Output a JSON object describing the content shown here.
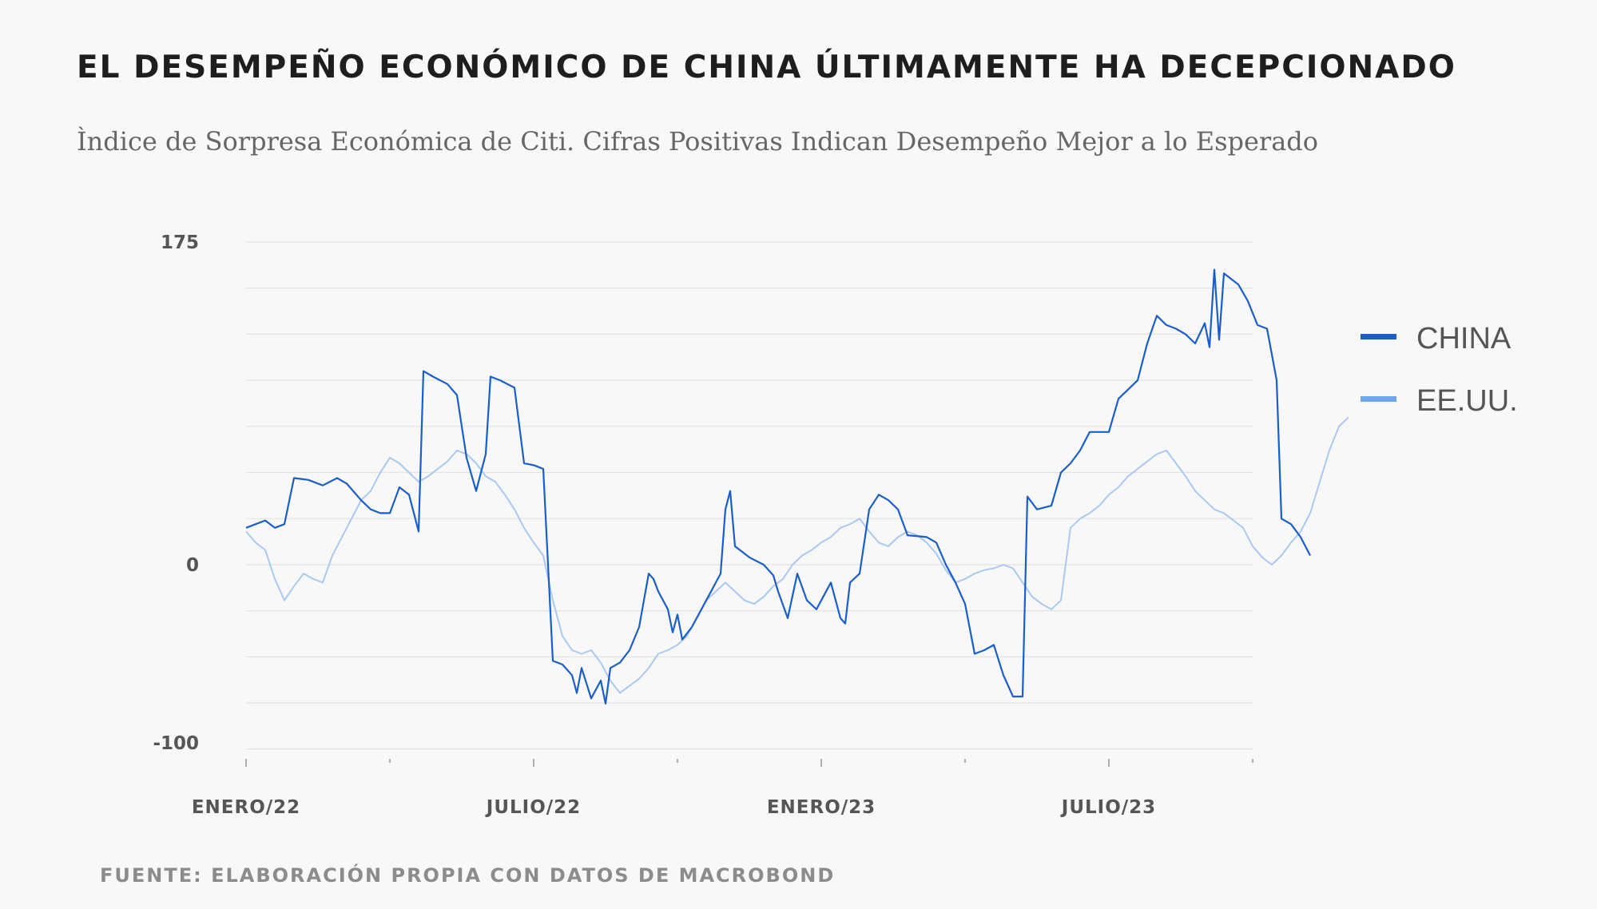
{
  "header": {
    "title": "EL DESEMPEÑO ECONÓMICO DE CHINA ÚLTIMAMENTE HA DECEPCIONADO",
    "subtitle": "Ìndice de Sorpresa Económica de Citi. Cifras Positivas Indican Desempeño Mejor a lo Esperado"
  },
  "footer": {
    "source": "FUENTE: ELABORACIÓN PROPIA CON DATOS DE MACROBOND"
  },
  "colors": {
    "china": "#1a5fc7",
    "usa": "#a9c9f2",
    "legend_usa": "#6ea6f0",
    "grid": "#e2e2e2"
  },
  "chart_data": {
    "type": "line",
    "title": "EL DESEMPEÑO ECONÓMICO DE CHINA ÚLTIMAMENTE HA DECEPCIONADO",
    "subtitle": "Ìndice de Sorpresa Económica de Citi. Cifras Positivas Indican Desempeño Mejor a lo Esperado",
    "xlabel": "",
    "ylabel": "",
    "x_range": [
      0,
      22.2
    ],
    "x_unit": "months since Jan 2022",
    "ylim": [
      -100,
      175
    ],
    "y_ticks": [
      175,
      0,
      -100
    ],
    "x_ticks": [
      {
        "label": "ENERO/22",
        "x": 0
      },
      {
        "label": "JULIO/22",
        "x": 6
      },
      {
        "label": "ENERO/23",
        "x": 12
      },
      {
        "label": "JULIO/23",
        "x": 18
      }
    ],
    "grid": true,
    "legend_position": "right",
    "series": [
      {
        "name": "CHINA",
        "points": [
          [
            0.0,
            20
          ],
          [
            0.2,
            22
          ],
          [
            0.4,
            24
          ],
          [
            0.6,
            20
          ],
          [
            0.8,
            22
          ],
          [
            1.0,
            47
          ],
          [
            1.3,
            46
          ],
          [
            1.6,
            43
          ],
          [
            1.9,
            47
          ],
          [
            2.1,
            44
          ],
          [
            2.4,
            35
          ],
          [
            2.6,
            30
          ],
          [
            2.8,
            28
          ],
          [
            3.0,
            28
          ],
          [
            3.2,
            42
          ],
          [
            3.4,
            38
          ],
          [
            3.6,
            18
          ],
          [
            3.7,
            105
          ],
          [
            3.9,
            102
          ],
          [
            4.2,
            98
          ],
          [
            4.4,
            92
          ],
          [
            4.6,
            58
          ],
          [
            4.8,
            40
          ],
          [
            5.0,
            60
          ],
          [
            5.1,
            102
          ],
          [
            5.3,
            100
          ],
          [
            5.6,
            96
          ],
          [
            5.8,
            55
          ],
          [
            6.0,
            54
          ],
          [
            6.2,
            52
          ],
          [
            6.4,
            -54
          ],
          [
            6.6,
            -56
          ],
          [
            6.8,
            -62
          ],
          [
            6.9,
            -72
          ],
          [
            7.0,
            -58
          ],
          [
            7.2,
            -75
          ],
          [
            7.4,
            -65
          ],
          [
            7.5,
            -78
          ],
          [
            7.6,
            -58
          ],
          [
            7.8,
            -55
          ],
          [
            8.0,
            -48
          ],
          [
            8.2,
            -35
          ],
          [
            8.4,
            -5
          ],
          [
            8.5,
            -8
          ],
          [
            8.6,
            -15
          ],
          [
            8.8,
            -25
          ],
          [
            8.9,
            -38
          ],
          [
            9.0,
            -28
          ],
          [
            9.1,
            -42
          ],
          [
            9.3,
            -35
          ],
          [
            9.5,
            -25
          ],
          [
            9.7,
            -15
          ],
          [
            9.9,
            -5
          ],
          [
            10.0,
            30
          ],
          [
            10.1,
            40
          ],
          [
            10.2,
            10
          ],
          [
            10.5,
            4
          ],
          [
            10.8,
            0
          ],
          [
            11.0,
            -6
          ],
          [
            11.1,
            -15
          ],
          [
            11.3,
            -30
          ],
          [
            11.5,
            -5
          ],
          [
            11.7,
            -20
          ],
          [
            11.9,
            -25
          ],
          [
            12.2,
            -10
          ],
          [
            12.4,
            -30
          ],
          [
            12.5,
            -33
          ],
          [
            12.6,
            -10
          ],
          [
            12.8,
            -5
          ],
          [
            13.0,
            30
          ],
          [
            13.2,
            38
          ],
          [
            13.4,
            35
          ],
          [
            13.6,
            30
          ],
          [
            13.8,
            16
          ],
          [
            14.2,
            15
          ],
          [
            14.4,
            12
          ],
          [
            14.6,
            0
          ],
          [
            14.8,
            -10
          ],
          [
            15.0,
            -22
          ],
          [
            15.2,
            -50
          ],
          [
            15.4,
            -48
          ],
          [
            15.6,
            -45
          ],
          [
            15.8,
            -62
          ],
          [
            16.0,
            -74
          ],
          [
            16.2,
            -74
          ],
          [
            16.3,
            37
          ],
          [
            16.5,
            30
          ],
          [
            16.8,
            32
          ],
          [
            17.0,
            50
          ],
          [
            17.2,
            55
          ],
          [
            17.4,
            62
          ],
          [
            17.6,
            72
          ],
          [
            17.8,
            72
          ],
          [
            18.0,
            72
          ],
          [
            18.2,
            90
          ],
          [
            18.4,
            95
          ],
          [
            18.6,
            100
          ],
          [
            18.8,
            120
          ],
          [
            19.0,
            135
          ],
          [
            19.2,
            130
          ],
          [
            19.4,
            128
          ],
          [
            19.6,
            125
          ],
          [
            19.8,
            120
          ],
          [
            20.0,
            131
          ],
          [
            20.1,
            118
          ],
          [
            20.2,
            160
          ],
          [
            20.3,
            122
          ],
          [
            20.4,
            158
          ],
          [
            20.7,
            152
          ],
          [
            20.9,
            143
          ],
          [
            21.1,
            130
          ],
          [
            21.3,
            128
          ],
          [
            21.5,
            100
          ],
          [
            21.6,
            25
          ],
          [
            21.8,
            22
          ],
          [
            22.0,
            15
          ],
          [
            22.2,
            5
          ]
        ]
      },
      {
        "name": "EE.UU.",
        "points": [
          [
            0.0,
            18
          ],
          [
            0.2,
            12
          ],
          [
            0.4,
            8
          ],
          [
            0.6,
            -8
          ],
          [
            0.8,
            -20
          ],
          [
            1.0,
            -12
          ],
          [
            1.2,
            -5
          ],
          [
            1.4,
            -8
          ],
          [
            1.6,
            -10
          ],
          [
            1.8,
            5
          ],
          [
            2.0,
            15
          ],
          [
            2.2,
            25
          ],
          [
            2.4,
            35
          ],
          [
            2.6,
            40
          ],
          [
            2.8,
            50
          ],
          [
            3.0,
            58
          ],
          [
            3.2,
            55
          ],
          [
            3.4,
            50
          ],
          [
            3.6,
            45
          ],
          [
            3.8,
            48
          ],
          [
            4.0,
            52
          ],
          [
            4.2,
            56
          ],
          [
            4.4,
            62
          ],
          [
            4.6,
            60
          ],
          [
            4.8,
            55
          ],
          [
            5.0,
            48
          ],
          [
            5.2,
            45
          ],
          [
            5.4,
            38
          ],
          [
            5.6,
            30
          ],
          [
            5.8,
            20
          ],
          [
            6.0,
            12
          ],
          [
            6.2,
            5
          ],
          [
            6.4,
            -20
          ],
          [
            6.6,
            -40
          ],
          [
            6.8,
            -48
          ],
          [
            7.0,
            -50
          ],
          [
            7.2,
            -48
          ],
          [
            7.4,
            -55
          ],
          [
            7.6,
            -65
          ],
          [
            7.8,
            -72
          ],
          [
            8.0,
            -68
          ],
          [
            8.2,
            -64
          ],
          [
            8.4,
            -58
          ],
          [
            8.6,
            -50
          ],
          [
            8.8,
            -48
          ],
          [
            9.0,
            -45
          ],
          [
            9.2,
            -40
          ],
          [
            9.4,
            -30
          ],
          [
            9.6,
            -20
          ],
          [
            9.8,
            -15
          ],
          [
            10.0,
            -10
          ],
          [
            10.2,
            -15
          ],
          [
            10.4,
            -20
          ],
          [
            10.6,
            -22
          ],
          [
            10.8,
            -18
          ],
          [
            11.0,
            -12
          ],
          [
            11.2,
            -8
          ],
          [
            11.4,
            0
          ],
          [
            11.6,
            5
          ],
          [
            11.8,
            8
          ],
          [
            12.0,
            12
          ],
          [
            12.2,
            15
          ],
          [
            12.4,
            20
          ],
          [
            12.6,
            22
          ],
          [
            12.8,
            25
          ],
          [
            13.0,
            18
          ],
          [
            13.2,
            12
          ],
          [
            13.4,
            10
          ],
          [
            13.6,
            15
          ],
          [
            13.8,
            18
          ],
          [
            14.0,
            16
          ],
          [
            14.2,
            12
          ],
          [
            14.4,
            6
          ],
          [
            14.6,
            -3
          ],
          [
            14.8,
            -10
          ],
          [
            15.0,
            -8
          ],
          [
            15.2,
            -5
          ],
          [
            15.4,
            -3
          ],
          [
            15.6,
            -2
          ],
          [
            15.8,
            0
          ],
          [
            16.0,
            -2
          ],
          [
            16.2,
            -10
          ],
          [
            16.4,
            -18
          ],
          [
            16.6,
            -22
          ],
          [
            16.8,
            -25
          ],
          [
            17.0,
            -20
          ],
          [
            17.2,
            20
          ],
          [
            17.4,
            25
          ],
          [
            17.6,
            28
          ],
          [
            17.8,
            32
          ],
          [
            18.0,
            38
          ],
          [
            18.2,
            42
          ],
          [
            18.4,
            48
          ],
          [
            18.6,
            52
          ],
          [
            18.8,
            56
          ],
          [
            19.0,
            60
          ],
          [
            19.2,
            62
          ],
          [
            19.4,
            55
          ],
          [
            19.6,
            48
          ],
          [
            19.8,
            40
          ],
          [
            20.0,
            35
          ],
          [
            20.2,
            30
          ],
          [
            20.4,
            28
          ],
          [
            20.6,
            24
          ],
          [
            20.8,
            20
          ],
          [
            21.0,
            10
          ],
          [
            21.2,
            4
          ],
          [
            21.4,
            0
          ],
          [
            21.6,
            5
          ],
          [
            21.8,
            12
          ],
          [
            22.0,
            18
          ],
          [
            22.2,
            28
          ],
          [
            22.4,
            45
          ],
          [
            22.6,
            62
          ],
          [
            22.8,
            75
          ],
          [
            23.0,
            80
          ]
        ]
      }
    ]
  }
}
